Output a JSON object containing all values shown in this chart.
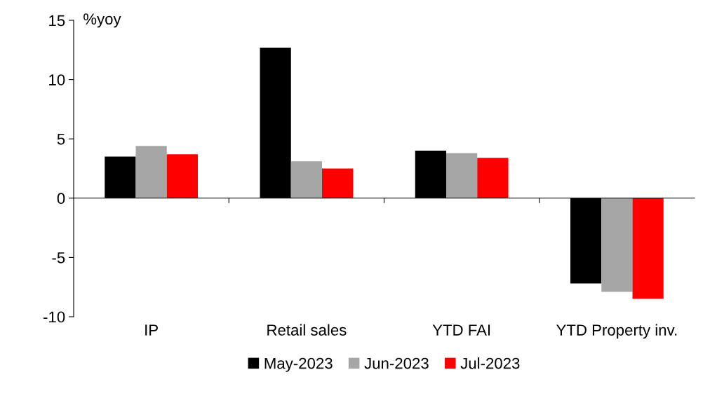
{
  "chart_data": {
    "type": "bar",
    "ylabel": "%yoy",
    "categories": [
      "IP",
      "Retail sales",
      "YTD FAI",
      "YTD Property inv."
    ],
    "series": [
      {
        "name": "May-2023",
        "color": "#000000",
        "values": [
          3.5,
          12.7,
          4.0,
          -7.2
        ]
      },
      {
        "name": "Jun-2023",
        "color": "#a6a6a6",
        "values": [
          4.4,
          3.1,
          3.8,
          -7.9
        ]
      },
      {
        "name": "Jul-2023",
        "color": "#ff0000",
        "values": [
          3.7,
          2.5,
          3.4,
          -8.5
        ]
      }
    ],
    "ylim": [
      -10,
      15
    ],
    "yticks": [
      -10,
      -5,
      0,
      5,
      10,
      15
    ],
    "legend": "bottom"
  }
}
